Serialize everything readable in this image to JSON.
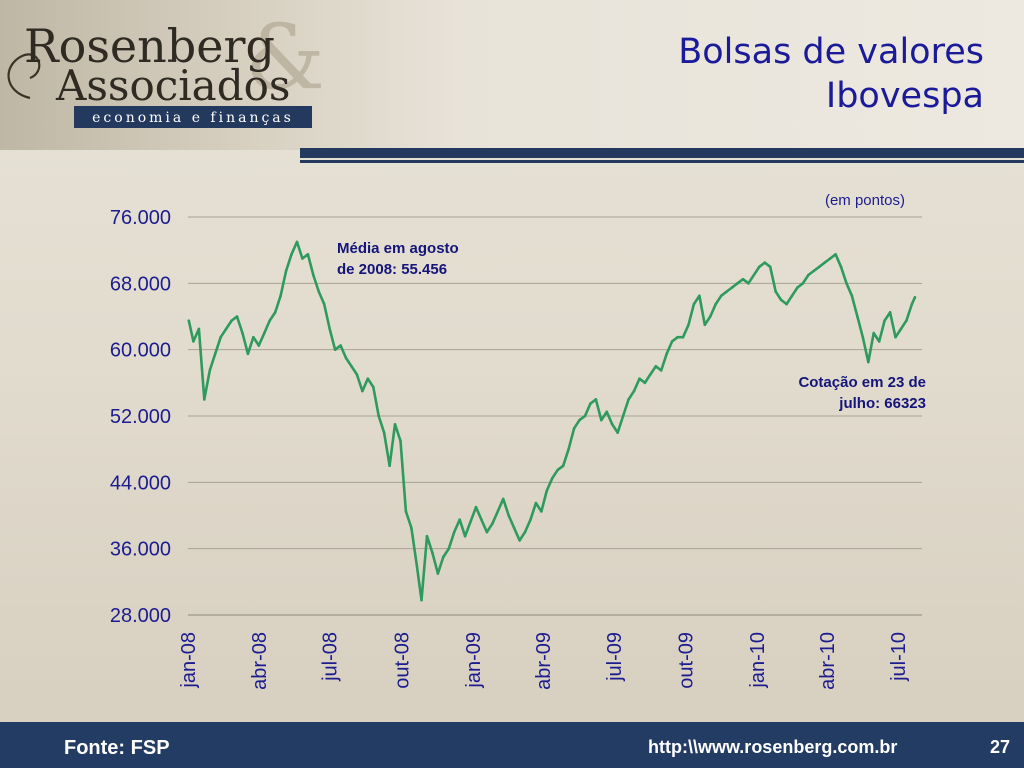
{
  "logo": {
    "line1": "Rosenberg",
    "line2": "Associados",
    "ampersand": "&",
    "tagline": "economia e finanças"
  },
  "title": {
    "line1": "Bolsas de valores",
    "line2": "Ibovespa"
  },
  "chart_data": {
    "type": "line",
    "unit_note": "(em pontos)",
    "ylim": [
      28000,
      76000
    ],
    "y_ticks": [
      {
        "value": 28000,
        "label": "28.000"
      },
      {
        "value": 36000,
        "label": "36.000"
      },
      {
        "value": 44000,
        "label": "44.000"
      },
      {
        "value": 52000,
        "label": "52.000"
      },
      {
        "value": 60000,
        "label": "60.000"
      },
      {
        "value": 68000,
        "label": "68.000"
      },
      {
        "value": 76000,
        "label": "76.000"
      }
    ],
    "x_ticks": [
      {
        "date": "2008-01-01",
        "label": "jan-08"
      },
      {
        "date": "2008-04-01",
        "label": "abr-08"
      },
      {
        "date": "2008-07-01",
        "label": "jul-08"
      },
      {
        "date": "2008-10-01",
        "label": "out-08"
      },
      {
        "date": "2009-01-01",
        "label": "jan-09"
      },
      {
        "date": "2009-04-01",
        "label": "abr-09"
      },
      {
        "date": "2009-07-01",
        "label": "jul-09"
      },
      {
        "date": "2009-10-01",
        "label": "out-09"
      },
      {
        "date": "2010-01-01",
        "label": "jan-10"
      },
      {
        "date": "2010-04-01",
        "label": "abr-10"
      },
      {
        "date": "2010-07-01",
        "label": "jul-10"
      }
    ],
    "grid": true,
    "series": [
      {
        "color": "#2e9a5e",
        "points": [
          [
            "2008-01-02",
            63500
          ],
          [
            "2008-01-08",
            61000
          ],
          [
            "2008-01-15",
            62500
          ],
          [
            "2008-01-22",
            54000
          ],
          [
            "2008-01-29",
            57500
          ],
          [
            "2008-02-05",
            59500
          ],
          [
            "2008-02-12",
            61500
          ],
          [
            "2008-02-19",
            62500
          ],
          [
            "2008-02-26",
            63500
          ],
          [
            "2008-03-04",
            64000
          ],
          [
            "2008-03-11",
            62000
          ],
          [
            "2008-03-18",
            59500
          ],
          [
            "2008-03-25",
            61500
          ],
          [
            "2008-04-01",
            60500
          ],
          [
            "2008-04-08",
            62000
          ],
          [
            "2008-04-15",
            63500
          ],
          [
            "2008-04-22",
            64500
          ],
          [
            "2008-04-29",
            66500
          ],
          [
            "2008-05-06",
            69500
          ],
          [
            "2008-05-13",
            71500
          ],
          [
            "2008-05-20",
            73000
          ],
          [
            "2008-05-27",
            71000
          ],
          [
            "2008-06-03",
            71500
          ],
          [
            "2008-06-10",
            69000
          ],
          [
            "2008-06-17",
            67000
          ],
          [
            "2008-06-24",
            65500
          ],
          [
            "2008-07-01",
            62500
          ],
          [
            "2008-07-08",
            60000
          ],
          [
            "2008-07-15",
            60500
          ],
          [
            "2008-07-22",
            59000
          ],
          [
            "2008-07-29",
            58000
          ],
          [
            "2008-08-05",
            57000
          ],
          [
            "2008-08-12",
            55000
          ],
          [
            "2008-08-19",
            56500
          ],
          [
            "2008-08-26",
            55500
          ],
          [
            "2008-09-02",
            52000
          ],
          [
            "2008-09-09",
            50000
          ],
          [
            "2008-09-16",
            46000
          ],
          [
            "2008-09-23",
            51000
          ],
          [
            "2008-09-30",
            49000
          ],
          [
            "2008-10-07",
            40500
          ],
          [
            "2008-10-14",
            38500
          ],
          [
            "2008-10-21",
            34000
          ],
          [
            "2008-10-27",
            29800
          ],
          [
            "2008-11-03",
            37500
          ],
          [
            "2008-11-10",
            35500
          ],
          [
            "2008-11-17",
            33000
          ],
          [
            "2008-11-24",
            35000
          ],
          [
            "2008-12-01",
            36000
          ],
          [
            "2008-12-08",
            38000
          ],
          [
            "2008-12-15",
            39500
          ],
          [
            "2008-12-22",
            37500
          ],
          [
            "2009-01-05",
            41000
          ],
          [
            "2009-01-12",
            39500
          ],
          [
            "2009-01-19",
            38000
          ],
          [
            "2009-01-26",
            39000
          ],
          [
            "2009-02-02",
            40500
          ],
          [
            "2009-02-09",
            42000
          ],
          [
            "2009-02-16",
            40000
          ],
          [
            "2009-02-23",
            38500
          ],
          [
            "2009-03-02",
            37000
          ],
          [
            "2009-03-09",
            38000
          ],
          [
            "2009-03-16",
            39500
          ],
          [
            "2009-03-23",
            41500
          ],
          [
            "2009-03-30",
            40500
          ],
          [
            "2009-04-06",
            43000
          ],
          [
            "2009-04-13",
            44500
          ],
          [
            "2009-04-20",
            45500
          ],
          [
            "2009-04-27",
            46000
          ],
          [
            "2009-05-04",
            48000
          ],
          [
            "2009-05-11",
            50500
          ],
          [
            "2009-05-18",
            51500
          ],
          [
            "2009-05-25",
            52000
          ],
          [
            "2009-06-01",
            53500
          ],
          [
            "2009-06-08",
            54000
          ],
          [
            "2009-06-15",
            51500
          ],
          [
            "2009-06-22",
            52500
          ],
          [
            "2009-06-29",
            51000
          ],
          [
            "2009-07-06",
            50000
          ],
          [
            "2009-07-13",
            52000
          ],
          [
            "2009-07-20",
            54000
          ],
          [
            "2009-07-27",
            55000
          ],
          [
            "2009-08-03",
            56500
          ],
          [
            "2009-08-10",
            56000
          ],
          [
            "2009-08-17",
            57000
          ],
          [
            "2009-08-24",
            58000
          ],
          [
            "2009-08-31",
            57500
          ],
          [
            "2009-09-07",
            59500
          ],
          [
            "2009-09-14",
            61000
          ],
          [
            "2009-09-21",
            61500
          ],
          [
            "2009-09-28",
            61500
          ],
          [
            "2009-10-05",
            63000
          ],
          [
            "2009-10-12",
            65500
          ],
          [
            "2009-10-19",
            66500
          ],
          [
            "2009-10-26",
            63000
          ],
          [
            "2009-11-02",
            64000
          ],
          [
            "2009-11-09",
            65500
          ],
          [
            "2009-11-16",
            66500
          ],
          [
            "2009-11-23",
            67000
          ],
          [
            "2009-11-30",
            67500
          ],
          [
            "2009-12-07",
            68000
          ],
          [
            "2009-12-14",
            68500
          ],
          [
            "2009-12-21",
            68000
          ],
          [
            "2010-01-04",
            70000
          ],
          [
            "2010-01-11",
            70500
          ],
          [
            "2010-01-18",
            70000
          ],
          [
            "2010-01-25",
            67000
          ],
          [
            "2010-02-01",
            66000
          ],
          [
            "2010-02-08",
            65500
          ],
          [
            "2010-02-15",
            66500
          ],
          [
            "2010-02-22",
            67500
          ],
          [
            "2010-03-01",
            68000
          ],
          [
            "2010-03-08",
            69000
          ],
          [
            "2010-03-15",
            69500
          ],
          [
            "2010-03-22",
            70000
          ],
          [
            "2010-03-29",
            70500
          ],
          [
            "2010-04-05",
            71000
          ],
          [
            "2010-04-12",
            71500
          ],
          [
            "2010-04-19",
            70000
          ],
          [
            "2010-04-26",
            68000
          ],
          [
            "2010-05-03",
            66500
          ],
          [
            "2010-05-10",
            64000
          ],
          [
            "2010-05-17",
            61500
          ],
          [
            "2010-05-24",
            58500
          ],
          [
            "2010-05-31",
            62000
          ],
          [
            "2010-06-07",
            61000
          ],
          [
            "2010-06-14",
            63500
          ],
          [
            "2010-06-21",
            64500
          ],
          [
            "2010-06-28",
            61500
          ],
          [
            "2010-07-05",
            62500
          ],
          [
            "2010-07-12",
            63500
          ],
          [
            "2010-07-19",
            65500
          ],
          [
            "2010-07-23",
            66323
          ]
        ]
      }
    ],
    "annotations": [
      {
        "lines": [
          "Média em agosto",
          "de 2008: 55.456"
        ]
      },
      {
        "lines": [
          "Cotação em 23 de",
          "julho: 66323"
        ]
      }
    ]
  },
  "footer": {
    "source": "Fonte: FSP",
    "url": "http:\\\\www.rosenberg.com.br",
    "page": "27"
  },
  "colors": {
    "navy": "#23395e",
    "title_blue": "#1b1b99",
    "line_green": "#2e9a5e",
    "annotation_blue": "#14147a"
  }
}
